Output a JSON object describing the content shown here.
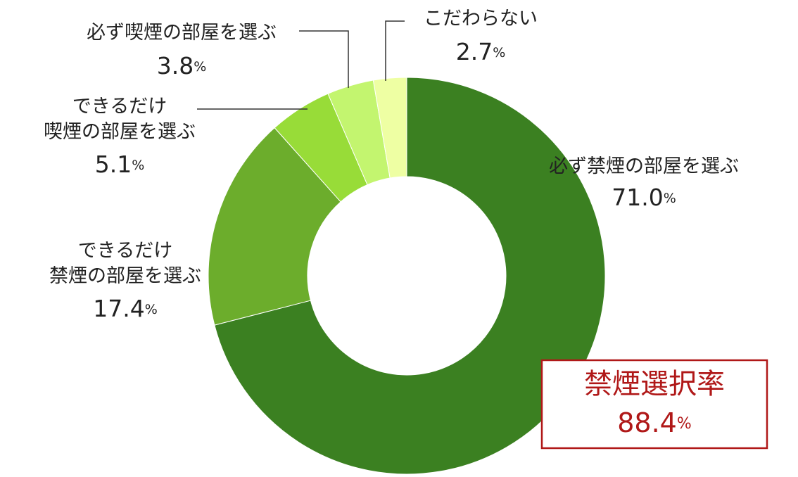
{
  "chart_data": {
    "type": "donut",
    "categories": [
      "必ず禁煙の部屋を選ぶ",
      "できるだけ\n禁煙の部屋を選ぶ",
      "できるだけ\n喫煙の部屋を選ぶ",
      "必ず喫煙の部屋を選ぶ",
      "こだわらない"
    ],
    "values": [
      71.0,
      17.4,
      5.1,
      3.8,
      2.7
    ],
    "value_labels": [
      "71.0%",
      "17.4%",
      "5.1%",
      "3.8%",
      "2.7%"
    ],
    "colors": [
      "#3b8021",
      "#6cad2c",
      "#98dc38",
      "#c3f56f",
      "#eeffa3"
    ],
    "annotation": {
      "text": "禁煙選択率",
      "value": 88.4,
      "value_label": "88.4%"
    }
  }
}
